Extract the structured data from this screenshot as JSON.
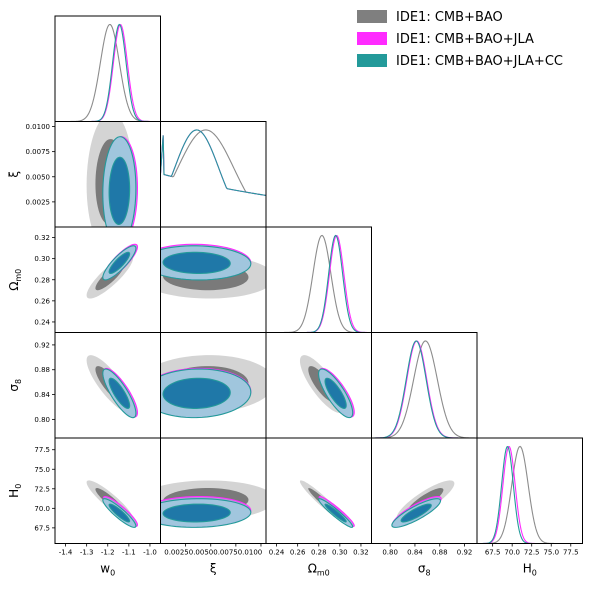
{
  "chart_data": {
    "type": "corner",
    "parameters": [
      {
        "key": "w0",
        "label_main": "w",
        "label_sub": "0",
        "range": [
          -1.45,
          -0.95
        ],
        "ticks": [
          -1.4,
          -1.3,
          -1.2,
          -1.1,
          -1.0
        ],
        "tick_labels": [
          "-1.4",
          "-1.3",
          "-1.2",
          "-1.1",
          "-1.0"
        ]
      },
      {
        "key": "xi",
        "label_main": "ξ",
        "label_sub": "",
        "range": [
          0,
          0.0105
        ],
        "ticks": [
          0.0025,
          0.005,
          0.0075,
          0.01
        ],
        "tick_labels": [
          "0.0025",
          "0.0050",
          "0.0075",
          "0.0100"
        ],
        "xtick_labels": [
          "0.00250.00500.00750.0100"
        ]
      },
      {
        "key": "om",
        "label_main": "Ω",
        "label_sub": "m0",
        "range": [
          0.23,
          0.33
        ],
        "ticks": [
          0.24,
          0.26,
          0.28,
          0.3,
          0.32
        ],
        "tick_labels": [
          "0.24",
          "0.26",
          "0.28",
          "0.30",
          "0.32"
        ]
      },
      {
        "key": "s8",
        "label_main": "σ",
        "label_sub": "8",
        "range": [
          0.77,
          0.94
        ],
        "ticks": [
          0.8,
          0.84,
          0.88,
          0.92
        ],
        "tick_labels": [
          "0.80",
          "0.84",
          "0.88",
          "0.92"
        ]
      },
      {
        "key": "h0",
        "label_main": "H",
        "label_sub": "0",
        "range": [
          65.5,
          79
        ],
        "ticks": [
          67.5,
          70.0,
          72.5,
          75.0,
          77.5
        ],
        "tick_labels": [
          "67.5",
          "70.0",
          "72.5",
          "75.0",
          "77.5"
        ]
      }
    ],
    "series": [
      {
        "name": "IDE1: CMB+BAO",
        "color": "#7f7f7f",
        "fill_outer": "#cfcfcf",
        "fill_inner": "#7a7a7a",
        "line": "#8c8c8c",
        "means": {
          "w0": -1.19,
          "xi": 0.0045,
          "om": 0.283,
          "s8": 0.857,
          "h0": 71.0
        },
        "sigmas": {
          "w0": 0.045,
          "xi": 0.0028,
          "om": 0.0085,
          "s8": 0.019,
          "h0": 1.05
        },
        "corr": {
          "w0|om": 0.85,
          "w0|s8": -0.82,
          "w0|h0": -0.9,
          "om|s8": -0.8,
          "om|h0": -0.95,
          "s8|h0": 0.85,
          "w0|xi": 0.05,
          "xi|om": -0.05,
          "xi|s8": 0.05,
          "xi|h0": 0.05
        }
      },
      {
        "name": "IDE1: CMB+BAO+JLA",
        "color": "#ff2bff",
        "fill_outer": "#b79fdc",
        "fill_inner": "#4e6fb5",
        "line": "#ff2bff",
        "means": {
          "w0": -1.14,
          "xi": 0.0036,
          "om": 0.297,
          "s8": 0.843,
          "h0": 69.6
        },
        "sigmas": {
          "w0": 0.033,
          "xi": 0.0022,
          "om": 0.0068,
          "s8": 0.016,
          "h0": 0.78
        },
        "corr": {
          "w0|om": 0.85,
          "w0|s8": -0.82,
          "w0|h0": -0.9,
          "om|s8": -0.8,
          "om|h0": -0.95,
          "s8|h0": 0.85,
          "w0|xi": 0.05,
          "xi|om": -0.05,
          "xi|s8": 0.05,
          "xi|h0": 0.05
        }
      },
      {
        "name": "IDE1: CMB+BAO+JLA+CC",
        "color": "#239a9a",
        "fill_outer": "#9fc8dd",
        "fill_inner": "#1f78a8",
        "line": "#239a9a",
        "means": {
          "w0": -1.145,
          "xi": 0.0036,
          "om": 0.296,
          "s8": 0.842,
          "h0": 69.4
        },
        "sigmas": {
          "w0": 0.032,
          "xi": 0.0022,
          "om": 0.0066,
          "s8": 0.016,
          "h0": 0.75
        },
        "corr": {
          "w0|om": 0.85,
          "w0|s8": -0.82,
          "w0|h0": -0.9,
          "om|s8": -0.8,
          "om|h0": -0.95,
          "s8|h0": 0.85,
          "w0|xi": 0.05,
          "xi|om": -0.05,
          "xi|s8": 0.05,
          "xi|h0": 0.05
        }
      }
    ],
    "legend_placement": "top-right",
    "grid": false
  }
}
